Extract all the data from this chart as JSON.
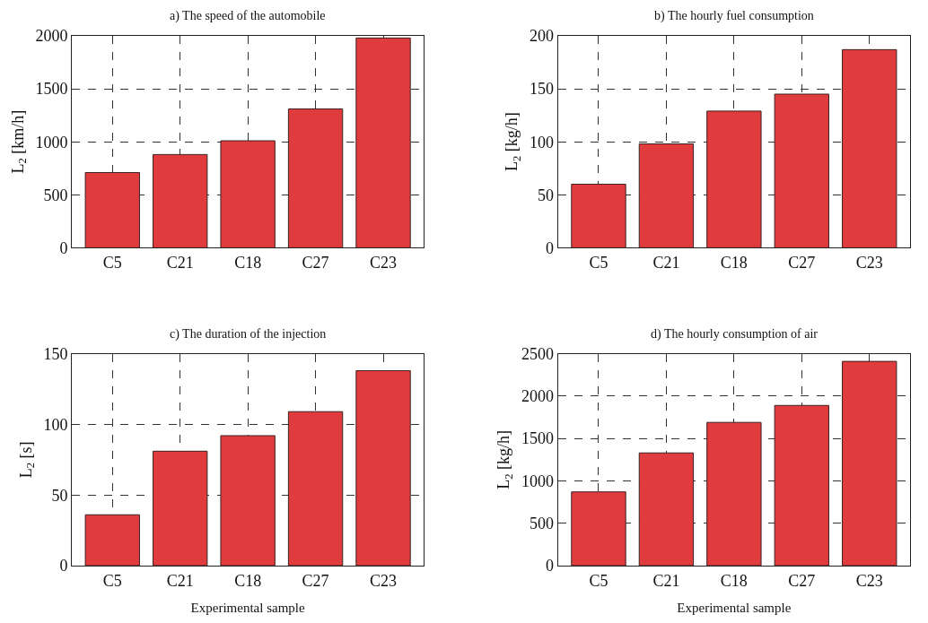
{
  "chart_data": [
    {
      "type": "bar",
      "title": "a) The speed of the automobile",
      "ylabel": "L$_{2}$ [km/h]",
      "categories": [
        "C5",
        "C21",
        "C18",
        "C27",
        "C23"
      ],
      "values": [
        710,
        880,
        1010,
        1310,
        1980
      ],
      "color": "#e03c3e",
      "ylim": [
        0,
        2000
      ],
      "yticks": [
        0,
        500,
        1000,
        1500,
        2000
      ],
      "grid": true
    },
    {
      "type": "bar",
      "title": "b) The hourly fuel consumption",
      "ylabel": "L$_{2}$ [kg/h]",
      "categories": [
        "C5",
        "C21",
        "C18",
        "C27",
        "C23"
      ],
      "values": [
        60,
        98,
        129,
        145,
        187
      ],
      "color": "#e03c3e",
      "ylim": [
        0,
        200
      ],
      "yticks": [
        0,
        50,
        100,
        150,
        200
      ],
      "grid": true
    },
    {
      "type": "bar",
      "title": "c) The duration of the injection",
      "xlabel": "Experimental sample",
      "ylabel": "L$_{2}$ [s]",
      "categories": [
        "C5",
        "C21",
        "C18",
        "C27",
        "C23"
      ],
      "values": [
        36,
        81,
        92,
        109,
        138
      ],
      "color": "#e03c3e",
      "ylim": [
        0,
        150
      ],
      "yticks": [
        0,
        50,
        100,
        150
      ],
      "grid": true
    },
    {
      "type": "bar",
      "title": "d) The hourly consumption of air",
      "xlabel": "Experimental sample",
      "ylabel": "L$_{2}$ [kg/h]",
      "categories": [
        "C5",
        "C21",
        "C18",
        "C27",
        "C23"
      ],
      "values": [
        870,
        1330,
        1690,
        1890,
        2410
      ],
      "color": "#e03c3e",
      "ylim": [
        0,
        2500
      ],
      "yticks": [
        0,
        500,
        1000,
        1500,
        2000,
        2500
      ],
      "grid": true
    }
  ]
}
